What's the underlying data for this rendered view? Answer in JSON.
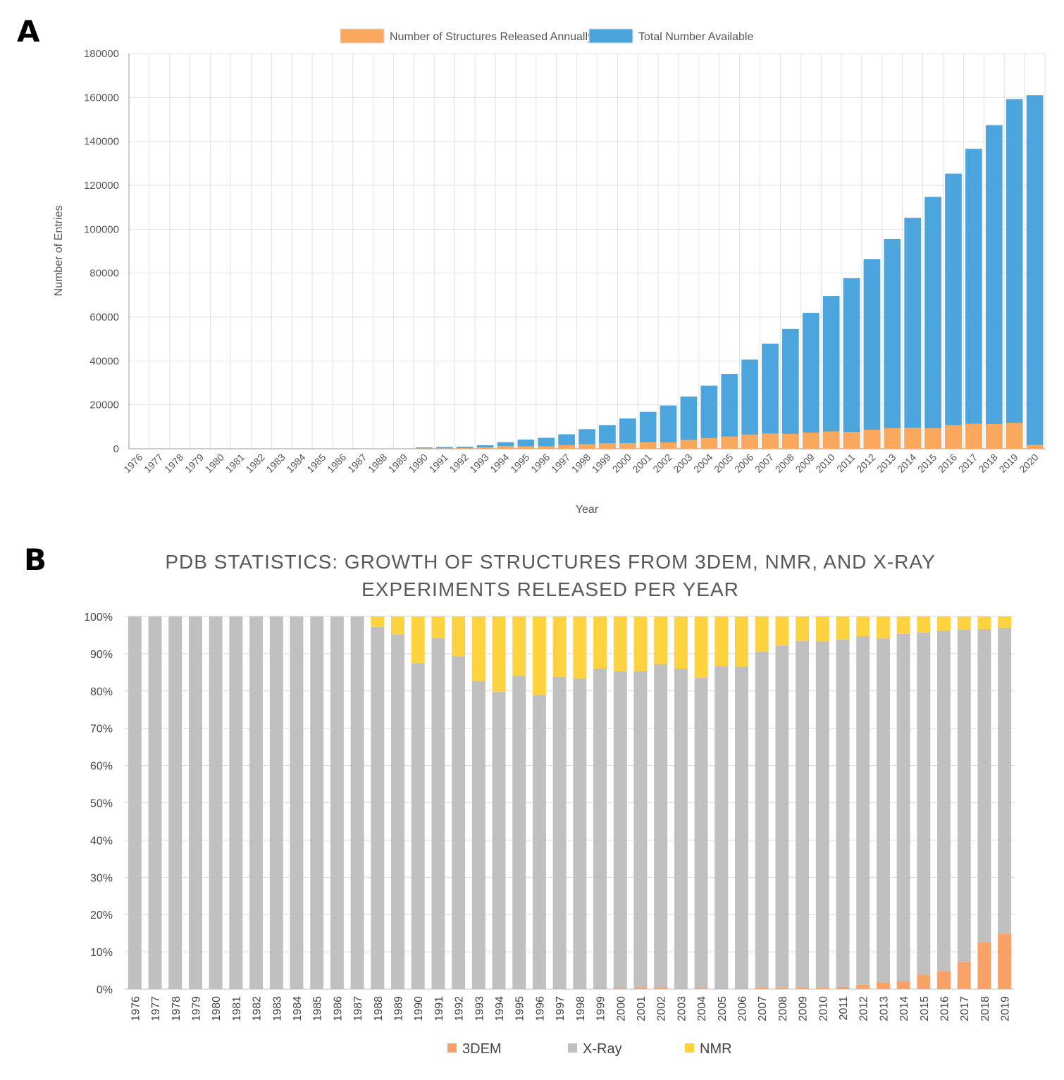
{
  "panels": {
    "a": "A",
    "b": "B"
  },
  "chart_data": [
    {
      "type": "bar",
      "stacked": false,
      "categories": [
        "1976",
        "1977",
        "1978",
        "1979",
        "1980",
        "1981",
        "1982",
        "1983",
        "1984",
        "1985",
        "1986",
        "1987",
        "1988",
        "1989",
        "1990",
        "1991",
        "1992",
        "1993",
        "1994",
        "1995",
        "1996",
        "1997",
        "1998",
        "1999",
        "2000",
        "2001",
        "2002",
        "2003",
        "2004",
        "2005",
        "2006",
        "2007",
        "2008",
        "2009",
        "2010",
        "2011",
        "2012",
        "2013",
        "2014",
        "2015",
        "2016",
        "2017",
        "2018",
        "2019",
        "2020"
      ],
      "series": [
        {
          "name": "Number of Structures Released Annually",
          "color": "#f9a85d",
          "values": [
            0,
            0,
            0,
            0,
            0,
            0,
            0,
            0,
            0,
            0,
            0,
            0,
            0,
            0,
            200,
            200,
            300,
            700,
            1300,
            1200,
            1200,
            1700,
            2100,
            2500,
            2600,
            3000,
            2900,
            4000,
            4900,
            5600,
            6500,
            7000,
            6800,
            7400,
            7900,
            7700,
            8700,
            9400,
            9600,
            9400,
            10800,
            11400,
            11300,
            11800,
            1800
          ]
        },
        {
          "name": "Total Number Available",
          "color": "#4ca5dc",
          "values": [
            0,
            0,
            0,
            0,
            0,
            0,
            0,
            0,
            0,
            0,
            0,
            0,
            0,
            0,
            600,
            800,
            900,
            1600,
            3000,
            4200,
            5000,
            6600,
            8900,
            10800,
            13800,
            16800,
            19700,
            23800,
            28700,
            34000,
            40600,
            47900,
            54600,
            61900,
            69600,
            77700,
            86300,
            95600,
            105200,
            114700,
            125300,
            136600,
            147400,
            159200,
            161000
          ]
        }
      ],
      "title": "",
      "xlabel": "Year",
      "ylabel": "Number of Entries",
      "ylim": [
        0,
        180000
      ],
      "yticks": [
        "0",
        "20000",
        "40000",
        "60000",
        "80000",
        "100000",
        "120000",
        "140000",
        "160000",
        "180000"
      ],
      "grid": true,
      "legend": "top-center"
    },
    {
      "type": "bar",
      "stacked": true,
      "percent": true,
      "categories": [
        "1976",
        "1977",
        "1978",
        "1979",
        "1980",
        "1981",
        "1982",
        "1983",
        "1984",
        "1985",
        "1986",
        "1987",
        "1988",
        "1989",
        "1990",
        "1991",
        "1992",
        "1993",
        "1994",
        "1995",
        "1996",
        "1997",
        "1998",
        "1999",
        "2000",
        "2001",
        "2002",
        "2003",
        "2004",
        "2005",
        "2006",
        "2007",
        "2008",
        "2009",
        "2010",
        "2011",
        "2012",
        "2013",
        "2014",
        "2015",
        "2016",
        "2017",
        "2018",
        "2019"
      ],
      "series": [
        {
          "name": "3DEM",
          "color": "#f9a267",
          "values": [
            0,
            0,
            0,
            0,
            0,
            0,
            0,
            0,
            0,
            0,
            0,
            0,
            0,
            0,
            0,
            0,
            0,
            0,
            0,
            0,
            0,
            0,
            0,
            0.2,
            0.3,
            0.5,
            0.5,
            0.1,
            0.3,
            0.2,
            0.2,
            0.4,
            0.4,
            0.5,
            0.4,
            0.6,
            1.2,
            1.8,
            2.1,
            3.8,
            4.8,
            7.4,
            12.6,
            14.9
          ]
        },
        {
          "name": "X-Ray",
          "color": "#c0c0c0",
          "values": [
            100,
            100,
            100,
            100,
            100,
            100,
            100,
            100,
            100,
            100,
            100,
            100,
            97.2,
            95.2,
            87.5,
            94.2,
            89.3,
            82.7,
            79.8,
            84.1,
            78.9,
            83.8,
            83.3,
            85.8,
            85.0,
            84.8,
            86.7,
            85.9,
            83.3,
            86.4,
            86.3,
            90.2,
            91.8,
            92.9,
            92.9,
            93.2,
            93.5,
            92.3,
            93.2,
            91.9,
            91.4,
            89.0,
            84.0,
            82.1
          ]
        },
        {
          "name": "NMR",
          "color": "#ffd23f",
          "values": [
            0,
            0,
            0,
            0,
            0,
            0,
            0,
            0,
            0,
            0,
            0,
            0,
            2.8,
            4.8,
            12.5,
            5.8,
            10.7,
            17.3,
            20.2,
            15.9,
            21.1,
            16.2,
            16.7,
            14.0,
            14.7,
            14.7,
            12.8,
            14.0,
            16.4,
            13.4,
            13.5,
            9.4,
            7.8,
            6.6,
            6.7,
            6.2,
            5.3,
            5.9,
            4.7,
            4.3,
            3.8,
            3.6,
            3.4,
            3.0
          ]
        }
      ],
      "title": "PDB STATISTICS: GROWTH OF STRUCTURES FROM 3DEM, NMR, AND X-RAY EXPERIMENTS RELEASED PER YEAR",
      "title_lines": [
        "PDB STATISTICS: GROWTH OF STRUCTURES FROM 3DEM, NMR, AND X-RAY",
        "EXPERIMENTS RELEASED PER YEAR"
      ],
      "xlabel": "",
      "ylabel": "",
      "ylim": [
        0,
        100
      ],
      "yticks": [
        "0%",
        "10%",
        "20%",
        "30%",
        "40%",
        "50%",
        "60%",
        "70%",
        "80%",
        "90%",
        "100%"
      ],
      "grid": true,
      "legend": "bottom-center"
    }
  ]
}
